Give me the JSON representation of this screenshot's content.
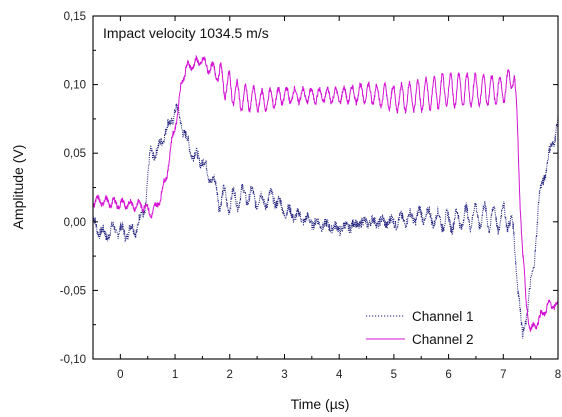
{
  "chart_data": {
    "type": "line",
    "title": "",
    "annotation": "Impact velocity 1034.5 m/s",
    "xlabel": "Time (µs)",
    "ylabel": "Amplitude (V)",
    "xlim": [
      -0.5,
      8.0
    ],
    "ylim": [
      -0.1,
      0.15
    ],
    "x_ticks": [
      0,
      1,
      2,
      3,
      4,
      5,
      6,
      7,
      8
    ],
    "x_tick_labels": [
      "0",
      "1",
      "2",
      "3",
      "4",
      "5",
      "6",
      "7",
      "8"
    ],
    "y_ticks": [
      -0.1,
      -0.05,
      0.0,
      0.05,
      0.1,
      0.15
    ],
    "y_tick_labels": [
      "-0,10",
      "-0,05",
      "0,00",
      "0,05",
      "0,10",
      "0,15"
    ],
    "grid": false,
    "legend_position": "bottom-right",
    "series": [
      {
        "name": "Channel 1",
        "color": "#1a1a7a",
        "line_style": "dotted",
        "points": [
          [
            -0.5,
            0.0
          ],
          [
            -0.3,
            -0.01
          ],
          [
            -0.1,
            -0.005
          ],
          [
            0.1,
            -0.008
          ],
          [
            0.3,
            -0.004
          ],
          [
            0.45,
            0.01
          ],
          [
            0.55,
            0.05
          ],
          [
            0.7,
            0.052
          ],
          [
            0.8,
            0.065
          ],
          [
            0.9,
            0.07
          ],
          [
            1.0,
            0.082
          ],
          [
            1.1,
            0.075
          ],
          [
            1.2,
            0.06
          ],
          [
            1.35,
            0.048
          ],
          [
            1.5,
            0.045
          ],
          [
            1.6,
            0.035
          ],
          [
            1.7,
            0.03
          ],
          [
            1.8,
            0.018
          ],
          [
            2.0,
            0.015
          ],
          [
            2.3,
            0.02
          ],
          [
            2.6,
            0.015
          ],
          [
            2.8,
            0.018
          ],
          [
            3.0,
            0.008
          ],
          [
            3.5,
            0.0
          ],
          [
            4.0,
            -0.005
          ],
          [
            4.5,
            0.0
          ],
          [
            5.0,
            0.0
          ],
          [
            5.5,
            0.005
          ],
          [
            6.0,
            0.0
          ],
          [
            6.5,
            0.005
          ],
          [
            6.9,
            0.002
          ],
          [
            7.1,
            0.005
          ],
          [
            7.2,
            -0.015
          ],
          [
            7.3,
            -0.06
          ],
          [
            7.35,
            -0.086
          ],
          [
            7.45,
            -0.06
          ],
          [
            7.55,
            -0.035
          ],
          [
            7.65,
            0.015
          ],
          [
            7.75,
            0.035
          ],
          [
            7.85,
            0.05
          ],
          [
            7.95,
            0.065
          ],
          [
            8.0,
            0.072
          ]
        ]
      },
      {
        "name": "Channel 2",
        "color": "#d414d4",
        "line_style": "solid",
        "points": [
          [
            -0.5,
            0.015
          ],
          [
            -0.3,
            0.015
          ],
          [
            0.0,
            0.013
          ],
          [
            0.3,
            0.012
          ],
          [
            0.45,
            0.012
          ],
          [
            0.55,
            0.006
          ],
          [
            0.65,
            0.01
          ],
          [
            0.75,
            0.02
          ],
          [
            0.85,
            0.035
          ],
          [
            0.95,
            0.06
          ],
          [
            1.05,
            0.08
          ],
          [
            1.12,
            0.102
          ],
          [
            1.2,
            0.112
          ],
          [
            1.35,
            0.115
          ],
          [
            1.5,
            0.118
          ],
          [
            1.6,
            0.112
          ],
          [
            1.7,
            0.112
          ],
          [
            1.8,
            0.105
          ],
          [
            2.0,
            0.098
          ],
          [
            2.2,
            0.09
          ],
          [
            2.4,
            0.09
          ],
          [
            2.6,
            0.088
          ],
          [
            3.0,
            0.092
          ],
          [
            3.5,
            0.092
          ],
          [
            4.0,
            0.092
          ],
          [
            4.5,
            0.094
          ],
          [
            5.0,
            0.09
          ],
          [
            5.5,
            0.092
          ],
          [
            6.0,
            0.096
          ],
          [
            6.5,
            0.096
          ],
          [
            7.0,
            0.096
          ],
          [
            7.2,
            0.108
          ],
          [
            7.25,
            0.08
          ],
          [
            7.3,
            0.02
          ],
          [
            7.35,
            -0.02
          ],
          [
            7.42,
            -0.06
          ],
          [
            7.5,
            -0.08
          ],
          [
            7.6,
            -0.074
          ],
          [
            7.7,
            -0.068
          ],
          [
            7.8,
            -0.062
          ],
          [
            7.9,
            -0.06
          ],
          [
            8.0,
            -0.062
          ]
        ]
      }
    ]
  }
}
